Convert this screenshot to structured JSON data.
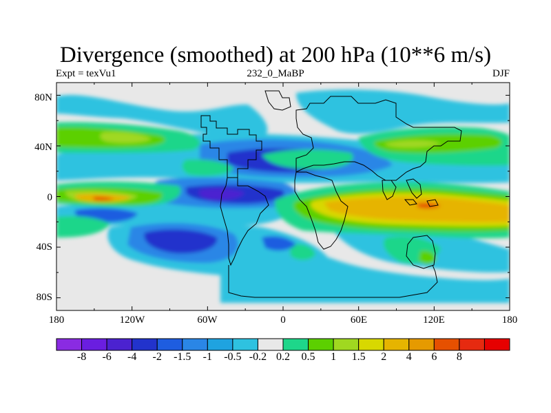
{
  "title": "Divergence (smoothed) at 200 hPa (10**6 m/s)",
  "subtitle_left": "Expt = texVu1",
  "subtitle_center": "232_0_MaBP",
  "subtitle_right": "DJF",
  "map": {
    "lat_ticks": [
      "80N",
      "40N",
      "0",
      "40S",
      "80S"
    ],
    "lon_ticks": [
      "180",
      "120W",
      "60W",
      "0",
      "60E",
      "120E",
      "180"
    ],
    "background_color": "#e8e8e8",
    "coastline_color": "#000000"
  },
  "colorbar": {
    "colors": [
      "#8a2be2",
      "#6a1ee0",
      "#4b22d0",
      "#2233cc",
      "#1e5de0",
      "#2a86e6",
      "#1fa3e0",
      "#2ec2e0",
      "#e8e8e8",
      "#1ed68a",
      "#5cd000",
      "#a0d820",
      "#d8d800",
      "#e6b400",
      "#e69a00",
      "#e65000",
      "#e62a10",
      "#e60000"
    ],
    "labels": [
      "-8",
      "-6",
      "-4",
      "-2",
      "-1.5",
      "-1",
      "-0.5",
      "-0.2",
      "0.2",
      "0.5",
      "1",
      "1.5",
      "2",
      "4",
      "6",
      "8"
    ]
  }
}
